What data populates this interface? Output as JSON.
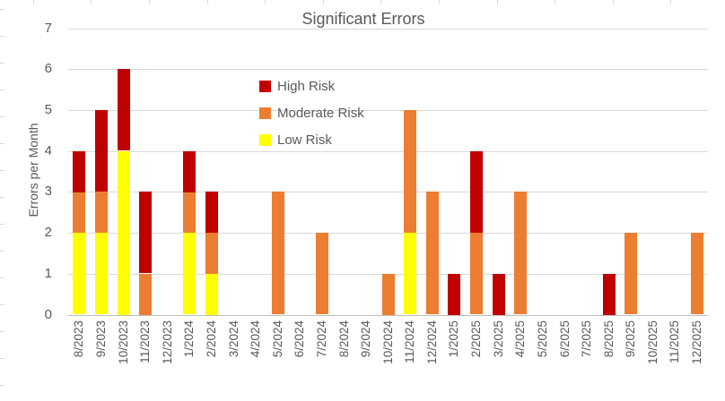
{
  "chart_data": {
    "type": "bar",
    "stacked": true,
    "title": "Significant Errors",
    "xlabel": "",
    "ylabel": "Errors per Month",
    "ylim": [
      0,
      7
    ],
    "yticks": [
      0,
      1,
      2,
      3,
      4,
      5,
      6,
      7
    ],
    "grid": "horizontal",
    "legend_position": "inside-upper-middle",
    "categories": [
      "8/2023",
      "9/2023",
      "10/2023",
      "11/2023",
      "12/2023",
      "1/2024",
      "2/2024",
      "3/2024",
      "4/2024",
      "5/2024",
      "6/2024",
      "7/2024",
      "8/2024",
      "9/2024",
      "10/2024",
      "11/2024",
      "12/2024",
      "1/2025",
      "2/2025",
      "3/2025",
      "4/2025",
      "5/2025",
      "6/2025",
      "7/2025",
      "8/2025",
      "9/2025",
      "10/2025",
      "11/2025",
      "12/2025"
    ],
    "series": [
      {
        "name": "Low Risk",
        "color": "#FFFF00",
        "values": [
          2,
          2,
          4,
          0,
          0,
          2,
          1,
          0,
          0,
          0,
          0,
          0,
          0,
          0,
          0,
          2,
          0,
          0,
          0,
          0,
          0,
          0,
          0,
          0,
          0,
          0,
          0,
          0,
          0
        ]
      },
      {
        "name": "Moderate Risk",
        "color": "#ED7D31",
        "values": [
          1,
          1,
          0,
          1,
          0,
          1,
          1,
          0,
          0,
          3,
          0,
          2,
          0,
          0,
          1,
          3,
          3,
          0,
          2,
          0,
          3,
          0,
          0,
          0,
          0,
          2,
          0,
          0,
          2
        ]
      },
      {
        "name": "High Risk",
        "color": "#C00000",
        "values": [
          1,
          2,
          2,
          2,
          0,
          1,
          1,
          0,
          0,
          0,
          0,
          0,
          0,
          0,
          0,
          0,
          0,
          1,
          2,
          1,
          0,
          0,
          0,
          0,
          1,
          0,
          0,
          0,
          0
        ]
      }
    ],
    "legend": [
      {
        "label": "High Risk",
        "series": "High Risk"
      },
      {
        "label": "Moderate Risk",
        "series": "Moderate Risk"
      },
      {
        "label": "Low Risk",
        "series": "Low Risk"
      }
    ]
  }
}
